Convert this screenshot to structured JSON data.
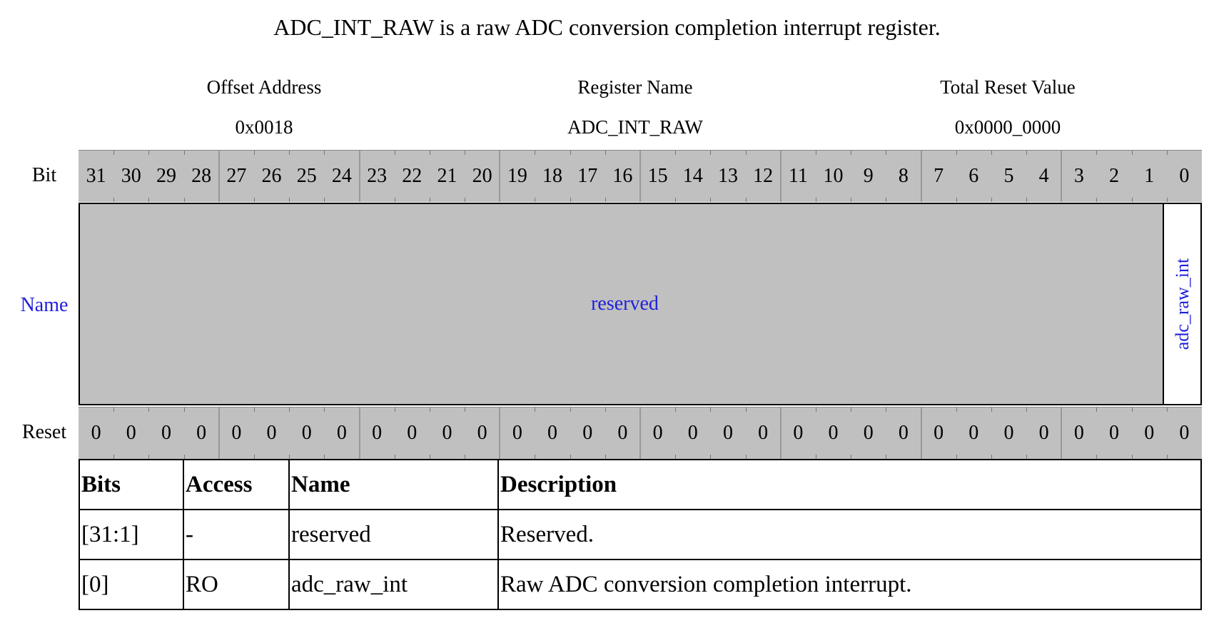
{
  "title": "ADC_INT_RAW is a raw ADC conversion completion interrupt register.",
  "meta": {
    "offset_label": "Offset Address",
    "offset_value": "0x0018",
    "name_label": "Register Name",
    "name_value": "ADC_INT_RAW",
    "reset_label": "Total Reset Value",
    "reset_value": "0x0000_0000"
  },
  "row_labels": {
    "bit": "Bit",
    "name": "Name",
    "reset": "Reset"
  },
  "bits": [
    "31",
    "30",
    "29",
    "28",
    "27",
    "26",
    "25",
    "24",
    "23",
    "22",
    "21",
    "20",
    "19",
    "18",
    "17",
    "16",
    "15",
    "14",
    "13",
    "12",
    "11",
    "10",
    "9",
    "8",
    "7",
    "6",
    "5",
    "4",
    "3",
    "2",
    "1",
    "0"
  ],
  "reset_values": [
    "0",
    "0",
    "0",
    "0",
    "0",
    "0",
    "0",
    "0",
    "0",
    "0",
    "0",
    "0",
    "0",
    "0",
    "0",
    "0",
    "0",
    "0",
    "0",
    "0",
    "0",
    "0",
    "0",
    "0",
    "0",
    "0",
    "0",
    "0",
    "0",
    "0",
    "0",
    "0"
  ],
  "fields": {
    "reserved": "reserved",
    "bit0": "adc_raw_int"
  },
  "colors": {
    "field_gray": "#c0c0c0",
    "name_blue": "#1f1fdc"
  },
  "table": {
    "headers": [
      "Bits",
      "Access",
      "Name",
      "Description"
    ],
    "rows": [
      [
        "[31:1]",
        "-",
        "reserved",
        "Reserved."
      ],
      [
        "[0]",
        "RO",
        "adc_raw_int",
        "Raw ADC conversion completion interrupt."
      ]
    ]
  }
}
